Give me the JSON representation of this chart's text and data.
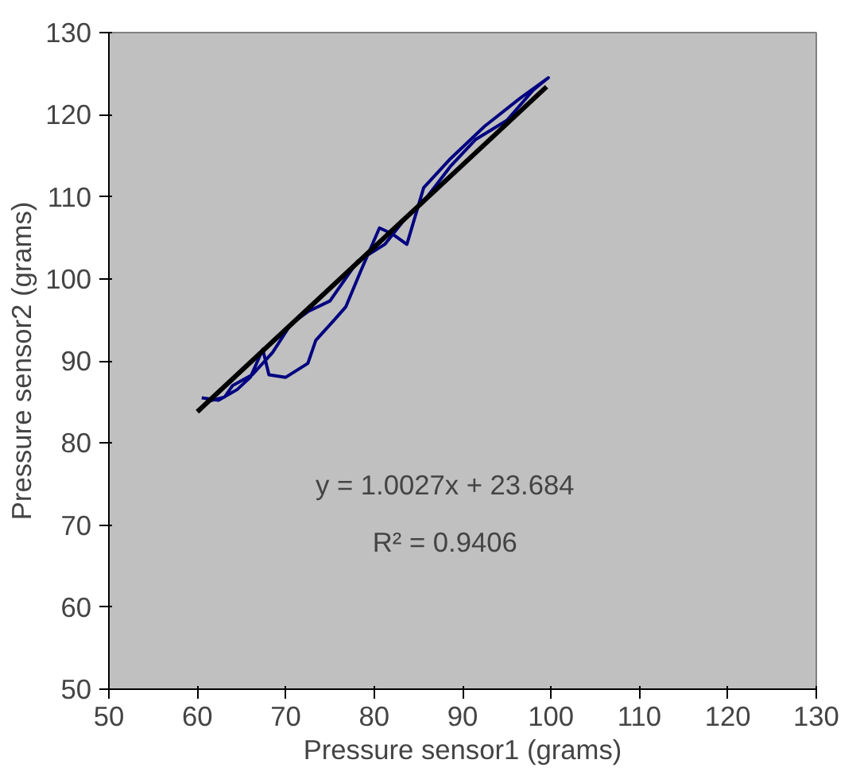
{
  "chart_data": {
    "type": "line",
    "xlabel": "Pressure sensor1 (grams)",
    "ylabel": "Pressure sensor2 (grams)",
    "xlim": [
      50,
      130
    ],
    "ylim": [
      50,
      130
    ],
    "xticks": [
      50,
      60,
      70,
      80,
      90,
      100,
      110,
      120,
      130
    ],
    "yticks": [
      50,
      60,
      70,
      80,
      90,
      100,
      110,
      120,
      130
    ],
    "grid": false,
    "marker": "none",
    "series": [
      {
        "color": "#000080",
        "x": [
          60.5,
          62.4,
          64.5,
          66.0,
          67.4,
          68.1,
          70.0,
          72.5,
          73.4,
          75.5,
          76.8,
          78.5,
          80.6,
          82.0,
          83.7,
          85.6,
          88.5,
          92.5,
          96.5,
          99.7,
          98.0,
          95.0,
          91.5,
          88.7,
          86.0,
          83.7,
          81.2,
          78.1,
          75.0,
          72.5,
          70.6,
          68.5,
          66.2,
          64.0,
          63.1,
          61.0
        ],
        "values": [
          85.5,
          85.2,
          86.5,
          88.0,
          91.4,
          88.3,
          88.0,
          89.7,
          92.5,
          95.0,
          96.6,
          101.0,
          106.2,
          105.5,
          104.2,
          111.1,
          114.5,
          118.6,
          122.0,
          124.5,
          123.0,
          119.3,
          117.0,
          113.8,
          110.0,
          107.6,
          104.2,
          102.1,
          97.3,
          96.0,
          94.5,
          91.0,
          88.3,
          87.0,
          85.6,
          85.0
        ]
      },
      {
        "color": "#000000",
        "x": [
          60,
          99.5
        ],
        "values": [
          83.8,
          123.4
        ]
      }
    ],
    "annotations": [
      "y = 1.0027x + 23.684",
      "R² = 0.9406"
    ]
  }
}
